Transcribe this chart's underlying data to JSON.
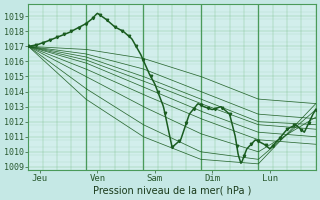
{
  "bg_color": "#c5e8e5",
  "plot_bg_color": "#d2eeec",
  "grid_color_fine": "#7bbf8a",
  "grid_color_major": "#4a9a5a",
  "line_color": "#1a5c20",
  "xlabel": "Pression niveau de la mer( hPa )",
  "xtick_labels": [
    "Jeu",
    "Ven",
    "Sam",
    "Dim",
    "Lun"
  ],
  "ylim": [
    1008.8,
    1019.8
  ],
  "yticks": [
    1009,
    1010,
    1011,
    1012,
    1013,
    1014,
    1015,
    1016,
    1017,
    1018,
    1019
  ],
  "xlim": [
    0,
    5
  ],
  "xtick_positions": [
    0.2,
    1.2,
    2.2,
    3.2,
    4.2
  ],
  "xgrid_major": [
    1,
    2,
    3,
    4
  ],
  "figsize": [
    3.2,
    2.0
  ],
  "dpi": 100,
  "ensemble_members": [
    [
      1017.0,
      1016.8,
      1016.2,
      1015.0,
      1013.5,
      1013.2
    ],
    [
      1017.0,
      1016.5,
      1015.5,
      1014.0,
      1012.5,
      1012.2
    ],
    [
      1017.0,
      1016.3,
      1015.0,
      1013.5,
      1012.0,
      1011.8
    ],
    [
      1017.0,
      1016.1,
      1014.7,
      1013.2,
      1011.8,
      1011.5
    ],
    [
      1017.0,
      1015.9,
      1014.3,
      1012.7,
      1011.3,
      1011.0
    ],
    [
      1017.0,
      1015.5,
      1013.8,
      1012.2,
      1010.8,
      1010.5
    ],
    [
      1017.0,
      1015.0,
      1013.0,
      1011.2,
      1010.0,
      1012.3
    ],
    [
      1017.0,
      1014.2,
      1011.8,
      1010.0,
      1009.5,
      1012.8
    ],
    [
      1017.0,
      1013.5,
      1011.0,
      1009.5,
      1009.2,
      1013.2
    ]
  ],
  "main_x": [
    0.0,
    0.15,
    0.3,
    0.5,
    0.7,
    0.85,
    1.0,
    1.1,
    1.2,
    1.35,
    1.5,
    1.65,
    1.8,
    1.95,
    2.1,
    2.2,
    2.35,
    2.5,
    2.65,
    2.8,
    2.95,
    3.05,
    3.2,
    3.35,
    3.5,
    3.6,
    3.65,
    3.7,
    3.8,
    3.95,
    4.1,
    4.2,
    4.35,
    4.5,
    4.65,
    4.8,
    4.95,
    5.0
  ],
  "main_y": [
    1017.0,
    1017.1,
    1017.3,
    1017.6,
    1017.9,
    1018.2,
    1018.5,
    1018.8,
    1019.2,
    1018.8,
    1018.3,
    1018.0,
    1017.5,
    1016.5,
    1015.2,
    1014.5,
    1013.0,
    1010.3,
    1010.8,
    1012.5,
    1013.2,
    1013.0,
    1012.8,
    1013.0,
    1012.5,
    1011.0,
    1009.8,
    1009.2,
    1010.2,
    1010.8,
    1010.5,
    1010.2,
    1010.8,
    1011.5,
    1011.8,
    1011.3,
    1012.5,
    1012.8
  ]
}
